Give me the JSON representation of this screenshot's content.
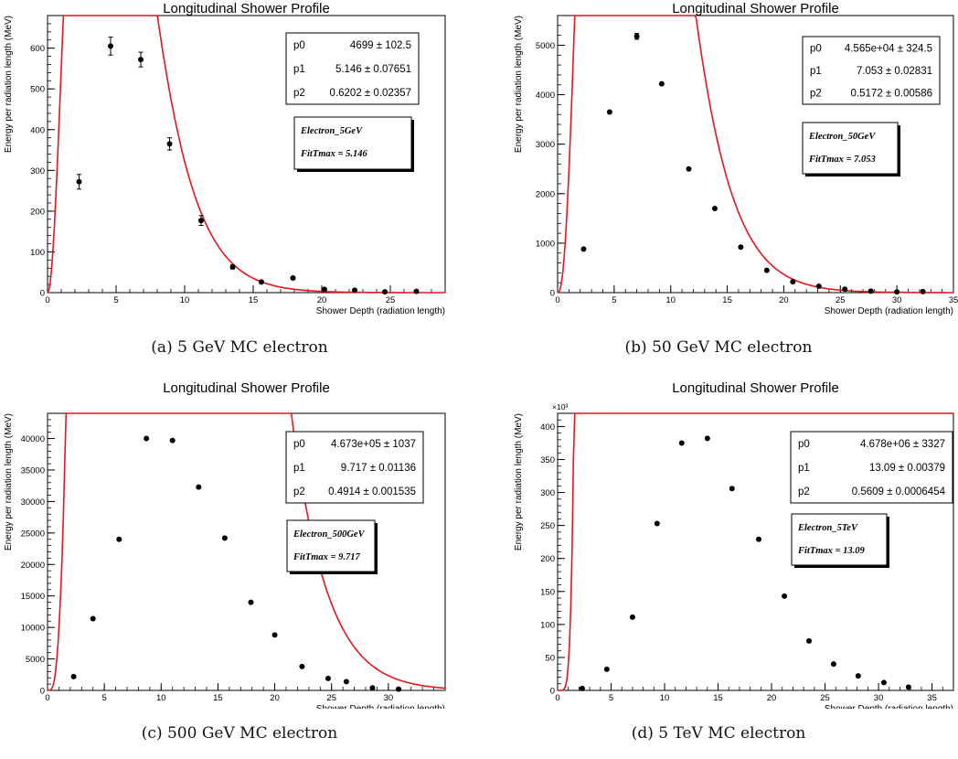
{
  "chart_data": [
    {
      "type": "scatter",
      "title": "Longitudinal Shower Profile",
      "xlabel": "Shower Depth (radiation length)",
      "ylabel": "Energy per radiation length (MeV)",
      "xlim": [
        0,
        29
      ],
      "ylim": [
        0,
        680
      ],
      "xticks": [
        0,
        5,
        10,
        15,
        20,
        25
      ],
      "yticks": [
        0,
        100,
        200,
        300,
        400,
        500,
        600
      ],
      "multiplier": "",
      "stats": [
        {
          "name": "p0",
          "value": "4699 ± 102.5"
        },
        {
          "name": "p1",
          "value": "5.146 ± 0.07651"
        },
        {
          "name": "p2",
          "value": "0.6202 ± 0.02357"
        }
      ],
      "label_lines": [
        "Electron_5GeV",
        "FitTmax = 5.146"
      ],
      "points": [
        {
          "x": 2.3,
          "y": 272,
          "err": 18
        },
        {
          "x": 4.6,
          "y": 605,
          "err": 22
        },
        {
          "x": 6.8,
          "y": 572,
          "err": 18
        },
        {
          "x": 8.9,
          "y": 365,
          "err": 15
        },
        {
          "x": 11.2,
          "y": 177,
          "err": 12
        },
        {
          "x": 13.5,
          "y": 63,
          "err": 5
        },
        {
          "x": 15.6,
          "y": 26,
          "err": 3
        },
        {
          "x": 17.9,
          "y": 36,
          "err": 3
        },
        {
          "x": 20.2,
          "y": 8,
          "err": 2
        },
        {
          "x": 22.4,
          "y": 6,
          "err": 1
        },
        {
          "x": 24.6,
          "y": 2,
          "err": 1
        },
        {
          "x": 26.9,
          "y": 3,
          "err": 1
        }
      ],
      "fit": {
        "p0": 4699,
        "p1": 5.146,
        "p2": 0.6202,
        "color": "#e8141b"
      }
    },
    {
      "type": "scatter",
      "title": "Longitudinal Shower Profile",
      "xlabel": "Shower Depth (radiation length)",
      "ylabel": "Energy per radiation length (MeV)",
      "xlim": [
        0,
        35
      ],
      "ylim": [
        0,
        5600
      ],
      "xticks": [
        0,
        5,
        10,
        15,
        20,
        25,
        30,
        35
      ],
      "yticks": [
        0,
        1000,
        2000,
        3000,
        4000,
        5000
      ],
      "multiplier": "",
      "stats": [
        {
          "name": "p0",
          "value": "4.565e+04 ± 324.5"
        },
        {
          "name": "p1",
          "value": "7.053 ± 0.02831"
        },
        {
          "name": "p2",
          "value": "0.5172 ± 0.00586"
        }
      ],
      "label_lines": [
        "Electron_50GeV",
        "FitTmax = 7.053"
      ],
      "points": [
        {
          "x": 2.3,
          "y": 880,
          "err": 0
        },
        {
          "x": 4.6,
          "y": 3650,
          "err": 0
        },
        {
          "x": 7.0,
          "y": 5180,
          "err": 60
        },
        {
          "x": 9.2,
          "y": 4220,
          "err": 0
        },
        {
          "x": 11.6,
          "y": 2500,
          "err": 0
        },
        {
          "x": 13.9,
          "y": 1700,
          "err": 0
        },
        {
          "x": 16.2,
          "y": 920,
          "err": 0
        },
        {
          "x": 18.5,
          "y": 450,
          "err": 0
        },
        {
          "x": 20.8,
          "y": 220,
          "err": 0
        },
        {
          "x": 23.1,
          "y": 130,
          "err": 0
        },
        {
          "x": 25.4,
          "y": 70,
          "err": 0
        },
        {
          "x": 27.7,
          "y": 30,
          "err": 0
        },
        {
          "x": 30.0,
          "y": 15,
          "err": 0
        },
        {
          "x": 32.3,
          "y": 20,
          "err": 0
        }
      ],
      "fit": {
        "p0": 45650,
        "p1": 7.053,
        "p2": 0.5172,
        "color": "#e8141b"
      }
    },
    {
      "type": "scatter",
      "title": "Longitudinal Shower Profile",
      "xlabel": "Shower Depth (radiation length)",
      "ylabel": "Energy per radiation length (MeV)",
      "xlim": [
        0,
        35
      ],
      "ylim": [
        0,
        44000
      ],
      "xticks": [
        0,
        5,
        10,
        15,
        20,
        25,
        30
      ],
      "yticks": [
        0,
        5000,
        10000,
        15000,
        20000,
        25000,
        30000,
        35000,
        40000
      ],
      "multiplier": "",
      "stats": [
        {
          "name": "p0",
          "value": "4.673e+05 ± 1037"
        },
        {
          "name": "p1",
          "value": "9.717 ± 0.01136"
        },
        {
          "name": "p2",
          "value": "0.4914 ± 0.001535"
        }
      ],
      "label_lines": [
        "Electron_500GeV",
        "FitTmax = 9.717"
      ],
      "points": [
        {
          "x": 2.3,
          "y": 2200,
          "err": 0
        },
        {
          "x": 4.0,
          "y": 11400,
          "err": 0
        },
        {
          "x": 6.3,
          "y": 24000,
          "err": 0
        },
        {
          "x": 8.7,
          "y": 40000,
          "err": 0
        },
        {
          "x": 11.0,
          "y": 39700,
          "err": 0
        },
        {
          "x": 13.3,
          "y": 32300,
          "err": 0
        },
        {
          "x": 15.6,
          "y": 24200,
          "err": 0
        },
        {
          "x": 17.9,
          "y": 14000,
          "err": 0
        },
        {
          "x": 20.0,
          "y": 8800,
          "err": 0
        },
        {
          "x": 22.4,
          "y": 3800,
          "err": 0
        },
        {
          "x": 24.7,
          "y": 1900,
          "err": 0
        },
        {
          "x": 26.3,
          "y": 1400,
          "err": 0
        },
        {
          "x": 28.6,
          "y": 400,
          "err": 0
        },
        {
          "x": 30.9,
          "y": 200,
          "err": 0
        }
      ],
      "fit": {
        "p0": 467300,
        "p1": 9.717,
        "p2": 0.4914,
        "color": "#e8141b"
      }
    },
    {
      "type": "scatter",
      "title": "Longitudinal Shower Profile",
      "xlabel": "Shower Depth (radiation length)",
      "ylabel": "Energy per radiation length (MeV)",
      "xlim": [
        0,
        37
      ],
      "ylim": [
        0,
        420
      ],
      "xticks": [
        0,
        5,
        10,
        15,
        20,
        25,
        30,
        35
      ],
      "yticks": [
        0,
        50,
        100,
        150,
        200,
        250,
        300,
        350,
        400
      ],
      "multiplier": "×10³",
      "stats": [
        {
          "name": "p0",
          "value": "4.678e+06 ± 3327"
        },
        {
          "name": "p1",
          "value": "13.09 ± 0.00379"
        },
        {
          "name": "p2",
          "value": "0.5609 ± 0.0006454"
        }
      ],
      "label_lines": [
        "Electron_5TeV",
        "FitTmax = 13.09"
      ],
      "points": [
        {
          "x": 2.3,
          "y": 3,
          "err": 0
        },
        {
          "x": 4.6,
          "y": 32,
          "err": 0
        },
        {
          "x": 7.0,
          "y": 111,
          "err": 0
        },
        {
          "x": 9.3,
          "y": 253,
          "err": 0
        },
        {
          "x": 11.6,
          "y": 375,
          "err": 0
        },
        {
          "x": 14.0,
          "y": 382,
          "err": 0
        },
        {
          "x": 16.3,
          "y": 306,
          "err": 0
        },
        {
          "x": 18.8,
          "y": 229,
          "err": 0
        },
        {
          "x": 21.2,
          "y": 143,
          "err": 0
        },
        {
          "x": 23.5,
          "y": 75,
          "err": 0
        },
        {
          "x": 25.8,
          "y": 40,
          "err": 0
        },
        {
          "x": 28.1,
          "y": 22,
          "err": 0
        },
        {
          "x": 30.5,
          "y": 12,
          "err": 0
        },
        {
          "x": 32.8,
          "y": 5,
          "err": 0
        }
      ],
      "fit": {
        "p0": 4678,
        "p1": 13.09,
        "p2": 0.5609,
        "color": "#e8141b"
      }
    }
  ],
  "captions": [
    "(a) 5 GeV MC electron",
    "(b) 50 GeV MC electron",
    "(c) 500 GeV MC electron",
    "(d) 5 TeV MC electron"
  ]
}
